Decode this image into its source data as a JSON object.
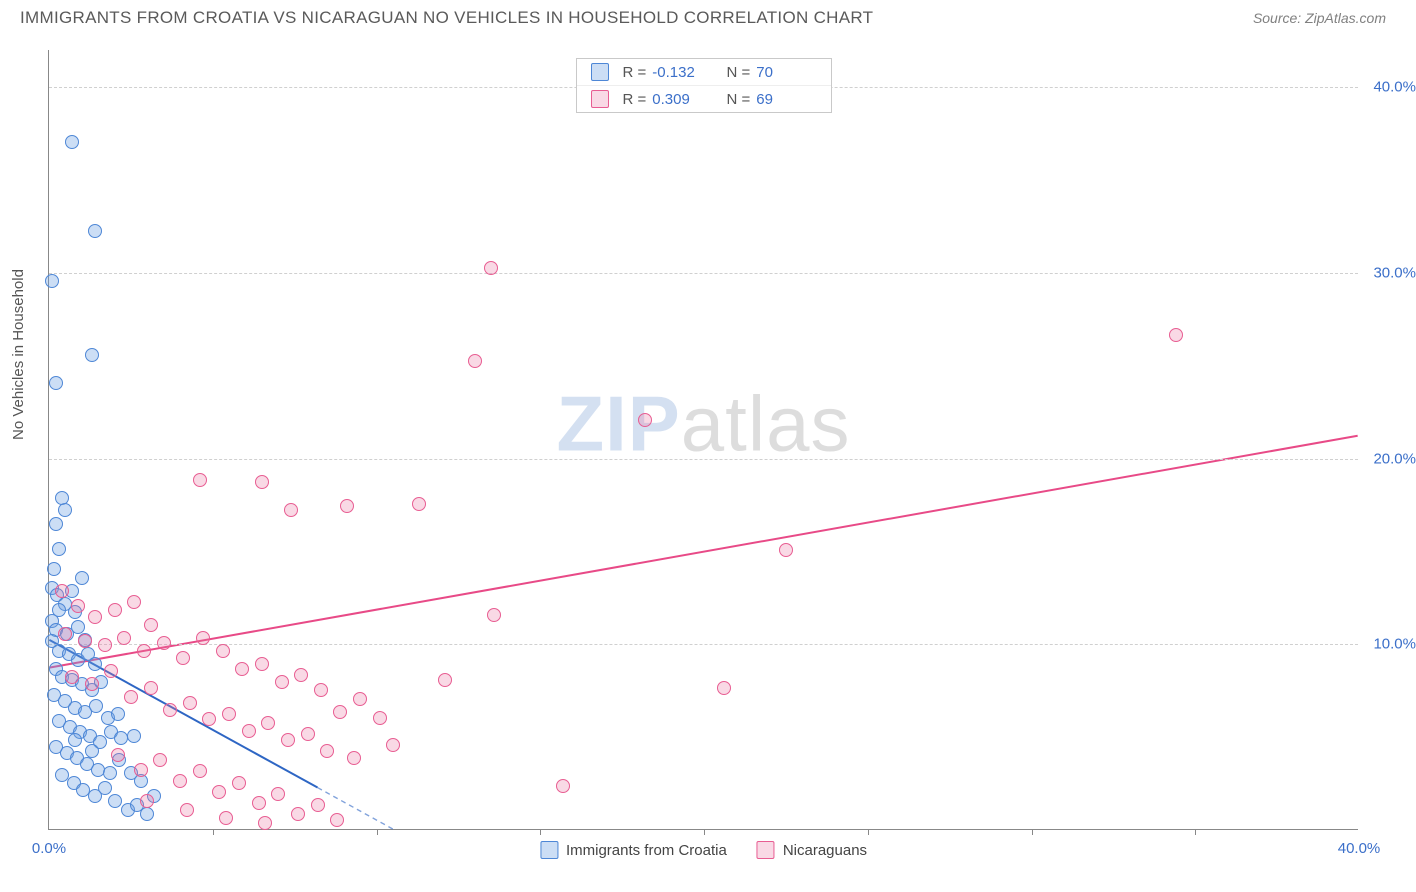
{
  "title": "IMMIGRANTS FROM CROATIA VS NICARAGUAN NO VEHICLES IN HOUSEHOLD CORRELATION CHART",
  "source": "Source: ZipAtlas.com",
  "ylabel": "No Vehicles in Household",
  "watermark": {
    "part1": "ZIP",
    "part2": "atlas"
  },
  "chart": {
    "type": "scatter",
    "xlim": [
      0,
      40
    ],
    "ylim": [
      0,
      42
    ],
    "xtick_labels": {
      "min": "0.0%",
      "max": "40.0%"
    },
    "yticks": [
      {
        "v": 10,
        "label": "10.0%"
      },
      {
        "v": 20,
        "label": "20.0%"
      },
      {
        "v": 30,
        "label": "30.0%"
      },
      {
        "v": 40,
        "label": "40.0%"
      }
    ],
    "xtick_minor_step": 5,
    "background_color": "#ffffff",
    "grid_color": "#d0d0d0",
    "axis_color": "#888888",
    "tick_label_color": "#3b6fc9",
    "point_radius": 7,
    "point_border_width": 1.2,
    "line_width": 2
  },
  "series": [
    {
      "name": "Immigrants from Croatia",
      "fill": "rgba(110,160,225,0.35)",
      "stroke": "#4e87d6",
      "line_color": "#2e66c4",
      "r_label": "R =",
      "r_value": "-0.132",
      "n_label": "N =",
      "n_value": "70",
      "trend": {
        "x1": 0,
        "y1": 10.2,
        "x2": 10.5,
        "y2": 0,
        "dash_after": 8.2
      },
      "points": [
        [
          0.1,
          29.5
        ],
        [
          0.7,
          37
        ],
        [
          1.4,
          32.2
        ],
        [
          0.2,
          24
        ],
        [
          1.3,
          25.5
        ],
        [
          0.4,
          17.8
        ],
        [
          0.5,
          17.2
        ],
        [
          0.2,
          16.4
        ],
        [
          0.3,
          15.1
        ],
        [
          0.15,
          14.0
        ],
        [
          0.1,
          13.0
        ],
        [
          0.25,
          12.6
        ],
        [
          0.5,
          12.1
        ],
        [
          0.7,
          12.8
        ],
        [
          0.8,
          11.7
        ],
        [
          0.1,
          11.2
        ],
        [
          0.2,
          10.7
        ],
        [
          0.55,
          10.5
        ],
        [
          0.9,
          10.9
        ],
        [
          1.1,
          10.2
        ],
        [
          0.1,
          10.1
        ],
        [
          0.3,
          9.6
        ],
        [
          0.6,
          9.4
        ],
        [
          0.9,
          9.1
        ],
        [
          1.2,
          9.4
        ],
        [
          1.4,
          8.9
        ],
        [
          0.2,
          8.6
        ],
        [
          0.4,
          8.2
        ],
        [
          0.7,
          8.0
        ],
        [
          1.0,
          7.8
        ],
        [
          1.3,
          7.5
        ],
        [
          1.6,
          7.9
        ],
        [
          0.15,
          7.2
        ],
        [
          0.5,
          6.9
        ],
        [
          0.8,
          6.5
        ],
        [
          1.1,
          6.3
        ],
        [
          1.45,
          6.6
        ],
        [
          1.8,
          6.0
        ],
        [
          0.3,
          5.8
        ],
        [
          0.65,
          5.5
        ],
        [
          0.95,
          5.2
        ],
        [
          1.25,
          5.0
        ],
        [
          1.55,
          4.7
        ],
        [
          1.9,
          5.2
        ],
        [
          2.2,
          4.9
        ],
        [
          0.2,
          4.4
        ],
        [
          0.55,
          4.1
        ],
        [
          0.85,
          3.8
        ],
        [
          1.15,
          3.5
        ],
        [
          1.5,
          3.2
        ],
        [
          1.85,
          3.0
        ],
        [
          2.15,
          3.7
        ],
        [
          2.5,
          3.0
        ],
        [
          2.8,
          2.6
        ],
        [
          0.4,
          2.9
        ],
        [
          0.75,
          2.5
        ],
        [
          1.05,
          2.1
        ],
        [
          1.4,
          1.8
        ],
        [
          1.7,
          2.2
        ],
        [
          2.0,
          1.5
        ],
        [
          2.4,
          1.0
        ],
        [
          2.7,
          1.3
        ],
        [
          3.0,
          0.8
        ],
        [
          1.0,
          13.5
        ],
        [
          0.3,
          11.8
        ],
        [
          0.8,
          4.8
        ],
        [
          1.3,
          4.2
        ],
        [
          2.1,
          6.2
        ],
        [
          2.6,
          5.0
        ],
        [
          3.2,
          1.8
        ]
      ]
    },
    {
      "name": "Nicaraguans",
      "fill": "rgba(235,120,160,0.28)",
      "stroke": "#e85d92",
      "line_color": "#e84a87",
      "r_label": "R =",
      "r_value": "0.309",
      "n_label": "N =",
      "n_value": "69",
      "trend": {
        "x1": 0,
        "y1": 8.7,
        "x2": 40,
        "y2": 21.2
      },
      "points": [
        [
          13.5,
          30.2
        ],
        [
          13.0,
          25.2
        ],
        [
          18.2,
          22.0
        ],
        [
          34.4,
          26.6
        ],
        [
          4.6,
          18.8
        ],
        [
          6.5,
          18.7
        ],
        [
          7.4,
          17.2
        ],
        [
          9.1,
          17.4
        ],
        [
          11.3,
          17.5
        ],
        [
          22.5,
          15.0
        ],
        [
          20.6,
          7.6
        ],
        [
          13.6,
          11.5
        ],
        [
          15.7,
          2.3
        ],
        [
          12.1,
          8.0
        ],
        [
          0.4,
          12.8
        ],
        [
          0.9,
          12.0
        ],
        [
          1.4,
          11.4
        ],
        [
          2.0,
          11.8
        ],
        [
          2.6,
          12.2
        ],
        [
          3.1,
          11.0
        ],
        [
          0.5,
          10.5
        ],
        [
          1.1,
          10.1
        ],
        [
          1.7,
          9.9
        ],
        [
          2.3,
          10.3
        ],
        [
          2.9,
          9.6
        ],
        [
          3.5,
          10.0
        ],
        [
          4.1,
          9.2
        ],
        [
          4.7,
          10.3
        ],
        [
          5.3,
          9.6
        ],
        [
          5.9,
          8.6
        ],
        [
          6.5,
          8.9
        ],
        [
          7.1,
          7.9
        ],
        [
          7.7,
          8.3
        ],
        [
          8.3,
          7.5
        ],
        [
          8.9,
          6.3
        ],
        [
          9.5,
          7.0
        ],
        [
          10.1,
          6.0
        ],
        [
          0.7,
          8.2
        ],
        [
          1.3,
          7.8
        ],
        [
          1.9,
          8.5
        ],
        [
          2.5,
          7.1
        ],
        [
          3.1,
          7.6
        ],
        [
          3.7,
          6.4
        ],
        [
          4.3,
          6.8
        ],
        [
          4.9,
          5.9
        ],
        [
          5.5,
          6.2
        ],
        [
          6.1,
          5.3
        ],
        [
          6.7,
          5.7
        ],
        [
          7.3,
          4.8
        ],
        [
          7.9,
          5.1
        ],
        [
          8.5,
          4.2
        ],
        [
          2.1,
          4.0
        ],
        [
          2.8,
          3.2
        ],
        [
          3.4,
          3.7
        ],
        [
          4.0,
          2.6
        ],
        [
          4.6,
          3.1
        ],
        [
          5.2,
          2.0
        ],
        [
          5.8,
          2.5
        ],
        [
          6.4,
          1.4
        ],
        [
          7.0,
          1.9
        ],
        [
          7.6,
          0.8
        ],
        [
          8.2,
          1.3
        ],
        [
          8.8,
          0.5
        ],
        [
          3.0,
          1.5
        ],
        [
          4.2,
          1.0
        ],
        [
          5.4,
          0.6
        ],
        [
          6.6,
          0.3
        ],
        [
          9.3,
          3.8
        ],
        [
          10.5,
          4.5
        ]
      ]
    }
  ],
  "bottom_legend": [
    {
      "label": "Immigrants from Croatia",
      "series": 0
    },
    {
      "label": "Nicaraguans",
      "series": 1
    }
  ]
}
